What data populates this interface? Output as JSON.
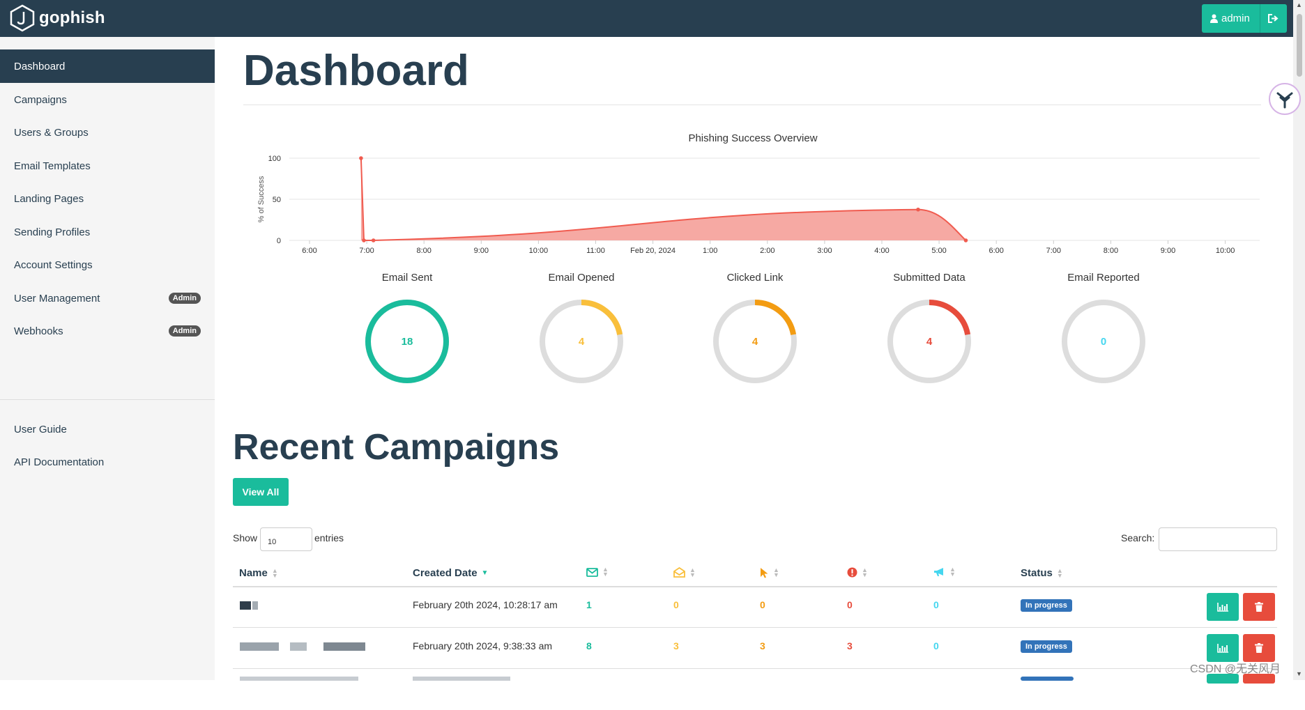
{
  "app": {
    "name": "gophish"
  },
  "header": {
    "user_label": "admin"
  },
  "sidebar": {
    "items": [
      {
        "label": "Dashboard",
        "active": true
      },
      {
        "label": "Campaigns"
      },
      {
        "label": "Users & Groups"
      },
      {
        "label": "Email Templates"
      },
      {
        "label": "Landing Pages"
      },
      {
        "label": "Sending Profiles"
      },
      {
        "label": "Account Settings"
      },
      {
        "label": "User Management",
        "badge": "Admin"
      },
      {
        "label": "Webhooks",
        "badge": "Admin"
      }
    ],
    "secondary": [
      {
        "label": "User Guide"
      },
      {
        "label": "API Documentation"
      }
    ]
  },
  "page": {
    "title": "Dashboard"
  },
  "chart_data": {
    "type": "area",
    "title": "Phishing Success Overview",
    "ylabel": "% of Success",
    "ylim": [
      0,
      100
    ],
    "yticks": [
      0,
      50,
      100
    ],
    "xticks": [
      "6:00",
      "7:00",
      "8:00",
      "9:00",
      "10:00",
      "11:00",
      "Feb 20, 2024",
      "1:00",
      "2:00",
      "3:00",
      "4:00",
      "5:00",
      "6:00",
      "7:00",
      "8:00",
      "9:00",
      "10:00"
    ],
    "points": [
      {
        "x": "Feb 19, 2024 23:54",
        "y": 100
      },
      {
        "x": "Feb 19, 2024 23:57",
        "y": 0
      },
      {
        "x": "Feb 20, 2024 00:07",
        "y": 0
      },
      {
        "x": "Feb 20, 2024 09:38",
        "y": 37.5
      },
      {
        "x": "Feb 20, 2024 10:28",
        "y": 0
      }
    ],
    "color": "#f05b4f"
  },
  "stats": [
    {
      "label": "Email Sent",
      "value": "18",
      "fraction": 1.0,
      "color": "#1abc9c"
    },
    {
      "label": "Email Opened",
      "value": "4",
      "fraction": 0.222,
      "color": "#f9bf3b"
    },
    {
      "label": "Clicked Link",
      "value": "4",
      "fraction": 0.222,
      "color": "#f39c12"
    },
    {
      "label": "Submitted Data",
      "value": "4",
      "fraction": 0.222,
      "color": "#e74c3c"
    },
    {
      "label": "Email Reported",
      "value": "0",
      "fraction": 0.0,
      "color": "#45d6ef"
    }
  ],
  "recent": {
    "title": "Recent Campaigns",
    "view_all": "View All",
    "show": "Show",
    "entries_value": "10",
    "entries": "entries",
    "search_label": "Search:",
    "columns": {
      "name": "Name",
      "created": "Created Date",
      "status": "Status"
    },
    "rows": [
      {
        "created": "February 20th 2024, 10:28:17 am",
        "sent": "1",
        "opened": "0",
        "clicked": "0",
        "submitted": "0",
        "reported": "0",
        "status": "In progress"
      },
      {
        "created": "February 20th 2024, 9:38:33 am",
        "sent": "8",
        "opened": "3",
        "clicked": "3",
        "submitted": "3",
        "reported": "0",
        "status": "In progress"
      }
    ]
  },
  "colors": {
    "navy": "#283f50",
    "teal": "#1abc9c",
    "red": "#e74c3c",
    "blue": "#3273b9",
    "yellow": "#f9bf3b",
    "orange": "#f39c12",
    "cyan": "#45d6ef"
  },
  "watermark": "CSDN @无关风月"
}
